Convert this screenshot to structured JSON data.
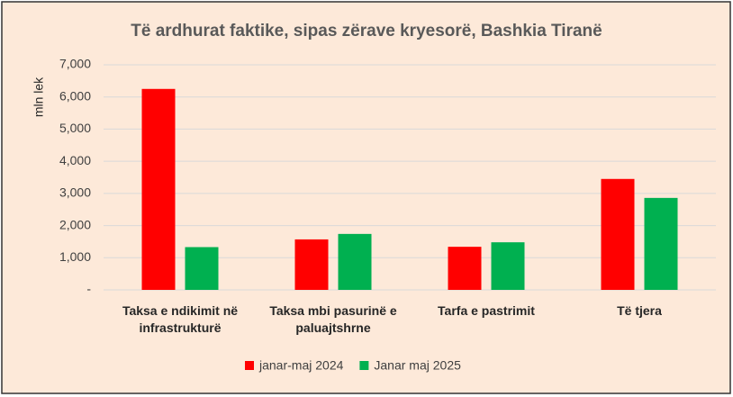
{
  "chart_data": {
    "type": "bar",
    "title": "Të ardhurat faktike, sipas zërave kryesorë, Bashkia Tiranë",
    "y_label": "mln lek",
    "categories": [
      "Taksa e ndikimit në infrastrukturë",
      "Taksa mbi pasurinë e paluajtshrne",
      "Tarfa e pastrimit",
      "Të tjera"
    ],
    "series": [
      {
        "name": "janar-maj 2024",
        "color": "#ff0000",
        "values": [
          6250,
          1570,
          1340,
          3450
        ]
      },
      {
        "name": "Janar maj 2025",
        "color": "#00b050",
        "values": [
          1330,
          1740,
          1480,
          2860
        ]
      }
    ],
    "ylim": [
      0,
      7000
    ],
    "yticks": [
      {
        "value": 0,
        "label": "-"
      },
      {
        "value": 1000,
        "label": "1,000"
      },
      {
        "value": 2000,
        "label": "2,000"
      },
      {
        "value": 3000,
        "label": "3,000"
      },
      {
        "value": 4000,
        "label": "4,000"
      },
      {
        "value": 5000,
        "label": "5,000"
      },
      {
        "value": 6000,
        "label": "6,000"
      },
      {
        "value": 7000,
        "label": "7,000"
      }
    ],
    "grid": true
  }
}
